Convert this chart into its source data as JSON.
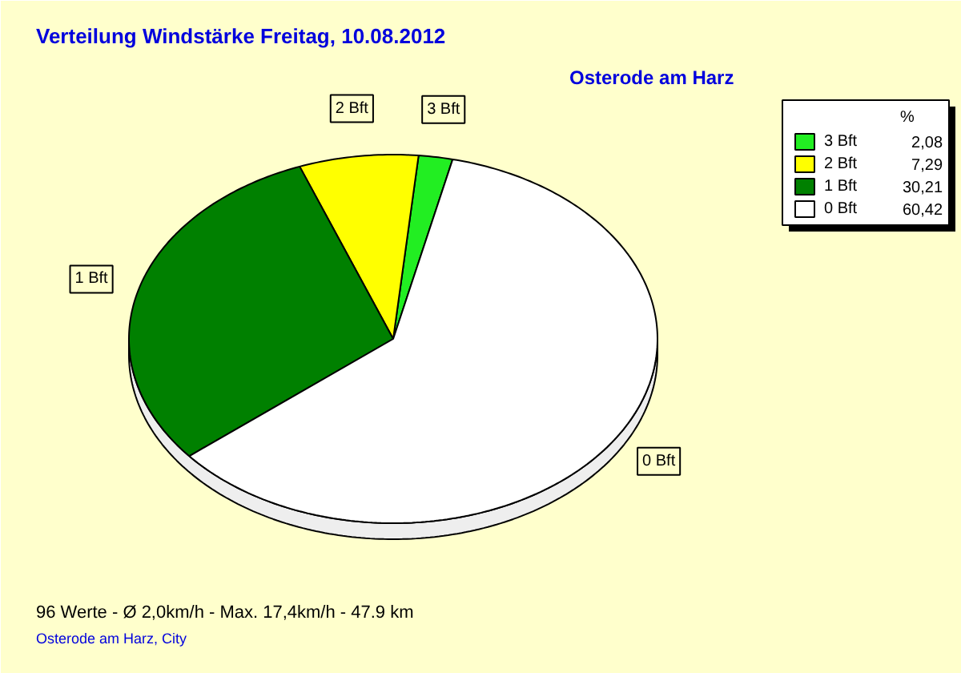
{
  "chart_data": {
    "type": "pie",
    "title": "Verteilung Windstärke  Freitag, 10.08.2012",
    "subtitle": "Osterode am Harz",
    "categories": [
      "3 Bft",
      "2 Bft",
      "1 Bft",
      "0 Bft"
    ],
    "values": [
      2.08,
      7.29,
      30.21,
      60.42
    ],
    "value_labels": [
      "2,08",
      "7,29",
      "30,21",
      "60,42"
    ],
    "colors": [
      "#22ee22",
      "#ffff00",
      "#008000",
      "#ffffff"
    ],
    "legend": "top right",
    "legend_title": "%",
    "annotations": [
      "96 Werte   -   Ø 2,0km/h  -  Max. 17,4km/h   -   47.9 km",
      "Osterode am Harz, City"
    ]
  }
}
